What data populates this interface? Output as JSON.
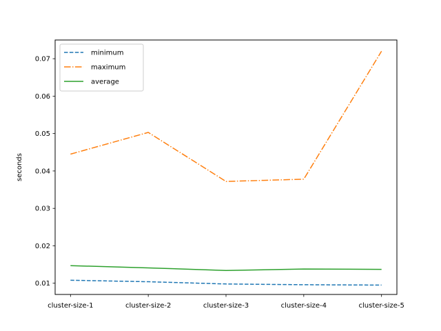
{
  "chart_data": {
    "type": "line",
    "title": "",
    "xlabel": "",
    "ylabel": "seconds",
    "categories": [
      "cluster-size-1",
      "cluster-size-2",
      "cluster-size-3",
      "cluster-size-4",
      "cluster-size-5"
    ],
    "ylim": [
      0.007,
      0.075
    ],
    "yticks": [
      0.01,
      0.02,
      0.03,
      0.04,
      0.05,
      0.06,
      0.07
    ],
    "ytick_labels": [
      "0.01",
      "0.02",
      "0.03",
      "0.04",
      "0.05",
      "0.06",
      "0.07"
    ],
    "grid": false,
    "legend_position": "upper-left",
    "series": [
      {
        "name": "minimum",
        "values": [
          0.0108,
          0.0104,
          0.0098,
          0.0096,
          0.0095
        ],
        "color": "#1f77b4",
        "style": "dashed"
      },
      {
        "name": "maximum",
        "values": [
          0.0445,
          0.0503,
          0.0372,
          0.0378,
          0.072
        ],
        "color": "#ff7f0e",
        "style": "dashdot"
      },
      {
        "name": "average",
        "values": [
          0.0147,
          0.0141,
          0.0134,
          0.0138,
          0.0137
        ],
        "color": "#2ca02c",
        "style": "solid"
      }
    ]
  }
}
